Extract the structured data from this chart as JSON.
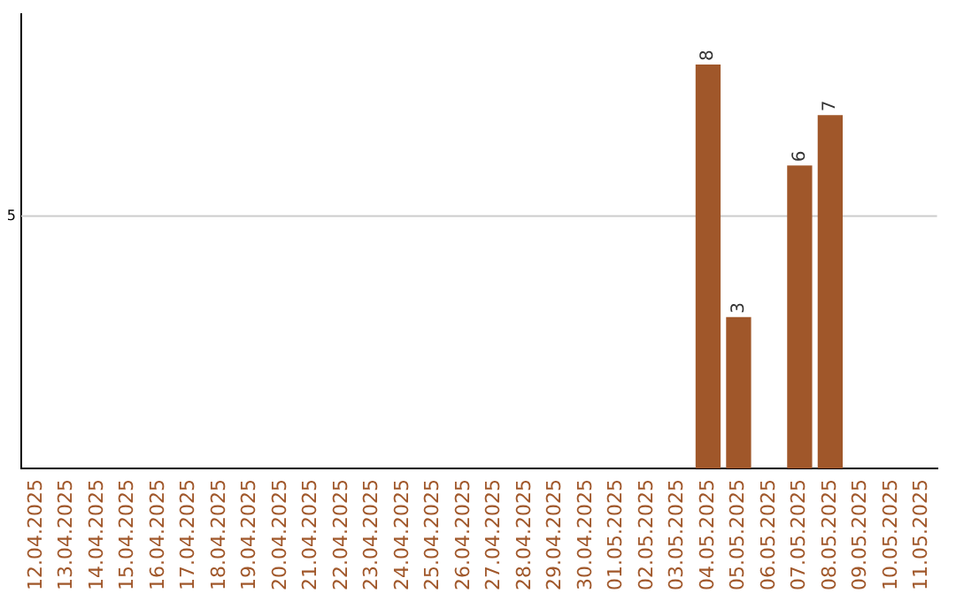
{
  "chart_data": {
    "type": "bar",
    "categories": [
      "12.04.2025",
      "13.04.2025",
      "14.04.2025",
      "15.04.2025",
      "16.04.2025",
      "17.04.2025",
      "18.04.2025",
      "19.04.2025",
      "20.04.2025",
      "21.04.2025",
      "22.04.2025",
      "23.04.2025",
      "24.04.2025",
      "25.04.2025",
      "26.04.2025",
      "27.04.2025",
      "28.04.2025",
      "29.04.2025",
      "30.04.2025",
      "01.05.2025",
      "02.05.2025",
      "03.05.2025",
      "04.05.2025",
      "05.05.2025",
      "06.05.2025",
      "07.05.2025",
      "08.05.2025",
      "09.05.2025",
      "10.05.2025",
      "11.05.2025"
    ],
    "values": [
      null,
      null,
      null,
      null,
      null,
      null,
      null,
      null,
      null,
      null,
      null,
      null,
      null,
      null,
      null,
      null,
      null,
      null,
      null,
      null,
      null,
      null,
      8,
      3,
      null,
      6,
      7,
      null,
      null,
      null
    ],
    "value_labels": [
      null,
      null,
      null,
      null,
      null,
      null,
      null,
      null,
      null,
      null,
      null,
      null,
      null,
      null,
      null,
      null,
      null,
      null,
      null,
      null,
      null,
      null,
      "8",
      "3",
      null,
      "6",
      "7",
      null,
      null,
      null
    ],
    "color": "#a0572a",
    "ref_lines": [
      {
        "axis": "y",
        "value": 5,
        "label": "5",
        "color": "#cccccc"
      }
    ],
    "legend": false
  }
}
